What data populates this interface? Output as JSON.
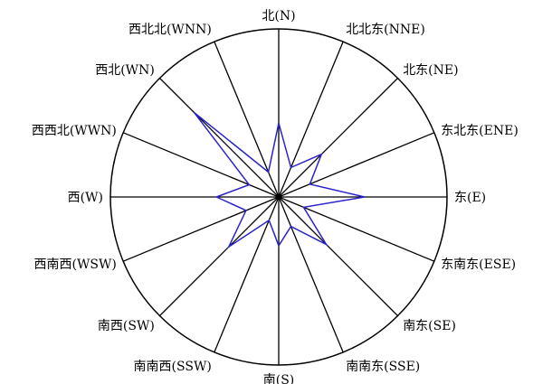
{
  "chart_data": {
    "type": "radar",
    "title": "",
    "directions": [
      "北(N)",
      "北北东(NNE)",
      "北东(NE)",
      "东北东(ENE)",
      "东(E)",
      "东南东(ESE)",
      "南东(SE)",
      "南南东(SSE)",
      "南(S)",
      "南南西(SSW)",
      "南西(SW)",
      "西南西(WSW)",
      "西(W)",
      "西西北(WWN)",
      "西北(WN)",
      "西北北(WNN)"
    ],
    "rlim": [
      0,
      1
    ],
    "grid": true,
    "series": [
      {
        "values": [
          0.44,
          0.19,
          0.36,
          0.2,
          0.51,
          0.16,
          0.4,
          0.19,
          0.29,
          0.15,
          0.42,
          0.21,
          0.37,
          0.19,
          0.71,
          0.16
        ]
      }
    ],
    "colors": {
      "series": "#2a24c8",
      "grid": "#000000"
    }
  }
}
